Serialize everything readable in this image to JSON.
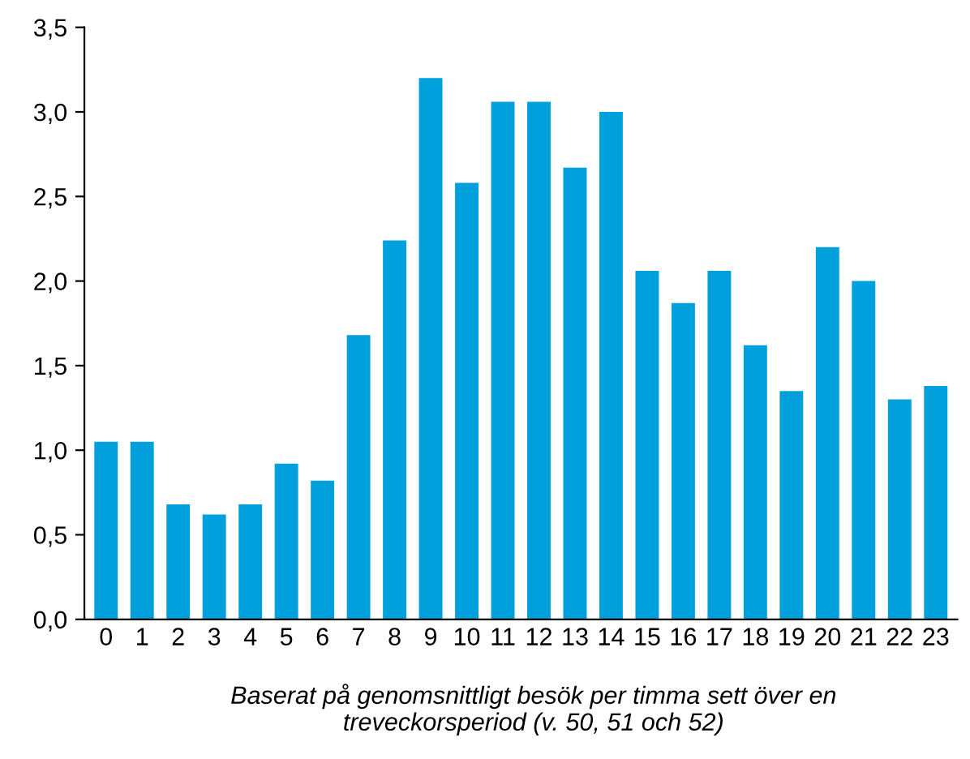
{
  "chart_data": {
    "type": "bar",
    "categories": [
      "0",
      "1",
      "2",
      "3",
      "4",
      "5",
      "6",
      "7",
      "8",
      "9",
      "10",
      "11",
      "12",
      "13",
      "14",
      "15",
      "16",
      "17",
      "18",
      "19",
      "20",
      "21",
      "22",
      "23"
    ],
    "values": [
      1.05,
      1.05,
      0.68,
      0.62,
      0.68,
      0.92,
      0.82,
      1.68,
      2.24,
      3.2,
      2.58,
      3.06,
      3.06,
      2.67,
      3.0,
      2.06,
      1.87,
      2.06,
      1.62,
      1.35,
      2.2,
      2.0,
      1.3,
      1.38
    ],
    "color": "#00a0dc",
    "ylim": [
      0,
      3.5
    ],
    "yticks": [
      {
        "value": 0,
        "label": "0,0"
      },
      {
        "value": 0.5,
        "label": "0,5"
      },
      {
        "value": 1,
        "label": "1,0"
      },
      {
        "value": 1.5,
        "label": "1,5"
      },
      {
        "value": 2,
        "label": "2,0"
      },
      {
        "value": 2.5,
        "label": "2,5"
      },
      {
        "value": 3,
        "label": "3,0"
      },
      {
        "value": 3.5,
        "label": "3,5"
      }
    ],
    "grid": false,
    "annotations": [
      "Baserat på genomsnittligt besök per timma sett över en\ntreveckorsperiod (v. 50, 51 och 52)"
    ]
  }
}
